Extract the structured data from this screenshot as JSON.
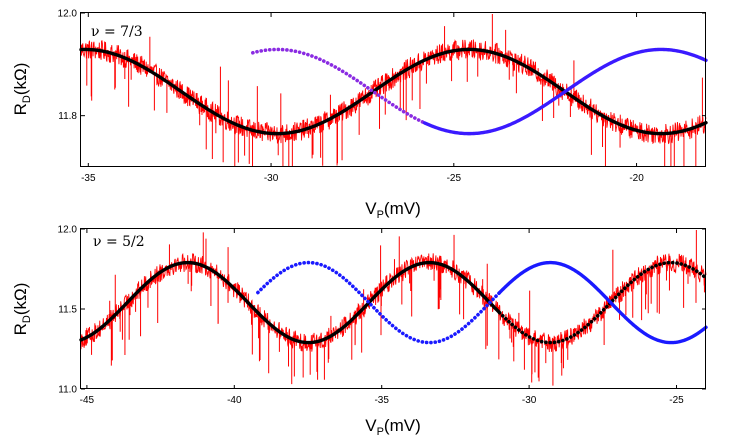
{
  "chart_data": [
    {
      "type": "line",
      "panel_label": "ν = 7/3",
      "xlabel": {
        "main": "V",
        "sub": "P",
        "rest": "(mV)"
      },
      "ylabel": {
        "main": "R",
        "sub": "D",
        "rest": "(kΩ)"
      },
      "xlim": [
        -35.2,
        -18.1
      ],
      "ylim": [
        11.7,
        12.0
      ],
      "xticks": [
        -35,
        -30,
        -25,
        -20
      ],
      "yticks": [
        11.8,
        12.0
      ],
      "ytick_labels": [
        "11.8",
        "12.0"
      ],
      "colors": {
        "data": "#ff0000",
        "fit": "#000000",
        "shift_solid": "#3a1aff",
        "shift_dotted": "#8a2be2"
      },
      "series": [
        {
          "name": "measured R_D (noisy trace)",
          "style": "noise",
          "color": "#ff0000",
          "x_range": [
            -35.2,
            -18.1
          ],
          "center": 11.847,
          "amplitude": 0.082,
          "period": 10.5,
          "phase_x": -35.2,
          "base_phase": 1.5,
          "noise": 0.02,
          "spike_count": 70,
          "spike_depth": 0.1
        },
        {
          "name": "sinusoidal fit",
          "style": "solid",
          "color": "#000000",
          "x_range": [
            -35.2,
            -18.1
          ],
          "center": 11.847,
          "amplitude": 0.082,
          "period": 10.5,
          "phase_x": -35.2,
          "base_phase": 1.5
        },
        {
          "name": "half-period shifted (dotted)",
          "style": "dotted",
          "color": "#8a2be2",
          "x_range": [
            -30.5,
            -25.8
          ],
          "center": 11.847,
          "amplitude": 0.082,
          "period": 10.5,
          "phase_x": -35.2,
          "base_phase": 4.64
        },
        {
          "name": "half-period shifted (solid)",
          "style": "solid",
          "color": "#3a1aff",
          "x_range": [
            -25.8,
            -18.1
          ],
          "center": 11.847,
          "amplitude": 0.082,
          "period": 10.5,
          "phase_x": -35.2,
          "base_phase": 4.64
        }
      ]
    },
    {
      "type": "line",
      "panel_label": "ν = 5/2",
      "xlabel": {
        "main": "V",
        "sub": "P",
        "rest": "(mV)"
      },
      "ylabel": {
        "main": "R",
        "sub": "D",
        "rest": "(kΩ)"
      },
      "xlim": [
        -45.2,
        -24.0
      ],
      "ylim": [
        11.0,
        12.0
      ],
      "xticks": [
        -45,
        -40,
        -35,
        -30,
        -25
      ],
      "yticks": [
        11.0,
        11.5,
        12.0
      ],
      "ytick_labels": [
        "11.0",
        "11.5",
        "12.0"
      ],
      "colors": {
        "data": "#ff0000",
        "fit": "#000000",
        "shift_blue": "#1a1aff"
      },
      "series": [
        {
          "name": "measured R_D (noisy trace)",
          "style": "noise",
          "color": "#ff0000",
          "x_range": [
            -45.2,
            -24.0
          ],
          "center": 11.54,
          "amplitude": 0.25,
          "period": 8.2,
          "phase_x": -45.2,
          "base_phase": -1.2,
          "noise": 0.06,
          "spike_count": 110,
          "spike_depth": 0.32
        },
        {
          "name": "sinusoidal fit",
          "style": "solid",
          "color": "#000000",
          "x_range": [
            -45.2,
            -31.0
          ],
          "center": 11.54,
          "amplitude": 0.25,
          "period": 8.2,
          "phase_x": -45.2,
          "base_phase": -1.2
        },
        {
          "name": "sinusoidal fit (extrapolated)",
          "style": "dotted",
          "color": "#000000",
          "x_range": [
            -31.0,
            -24.0
          ],
          "center": 11.54,
          "amplitude": 0.25,
          "period": 8.2,
          "phase_x": -45.2,
          "base_phase": -1.2
        },
        {
          "name": "half-period shifted (dotted)",
          "style": "dotted",
          "color": "#1a1aff",
          "x_range": [
            -39.2,
            -31.0
          ],
          "center": 11.54,
          "amplitude": 0.25,
          "period": 8.2,
          "phase_x": -45.2,
          "base_phase": 1.94
        },
        {
          "name": "half-period shifted (solid)",
          "style": "solid",
          "color": "#1a1aff",
          "x_range": [
            -31.0,
            -24.0
          ],
          "center": 11.54,
          "amplitude": 0.25,
          "period": 8.2,
          "phase_x": -45.2,
          "base_phase": 1.94
        }
      ]
    }
  ]
}
